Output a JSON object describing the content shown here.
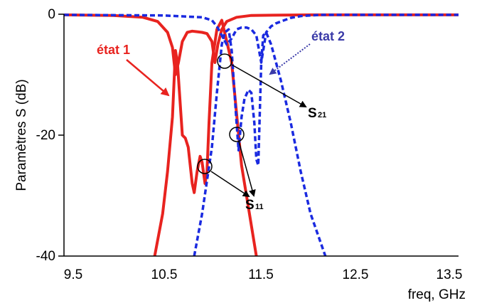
{
  "chart_data": {
    "type": "line",
    "xlabel": "freq, GHz",
    "ylabel": "Paramètres S (dB)",
    "xlim": [
      9.5,
      13.5
    ],
    "ylim": [
      -40,
      0
    ],
    "x_ticks": [
      "9.5",
      "10.5",
      "11.5",
      "12.5",
      "13.5"
    ],
    "y_ticks": [
      "0",
      "-20",
      "-40"
    ],
    "grid": false,
    "colors": {
      "etat1": "#e8231f",
      "etat2": "#1a2ae0",
      "axis": "#000000",
      "arrow2": "#3a3aa8"
    },
    "series": [
      {
        "name": "S21",
        "state": "état 1",
        "style": "solid",
        "x": [
          9.5,
          10.0,
          10.3,
          10.45,
          10.55,
          10.6,
          10.63,
          10.66,
          10.7,
          10.75,
          10.8,
          10.85,
          10.9,
          10.95,
          11.0,
          11.03,
          11.06,
          11.1,
          11.15,
          11.25,
          11.4,
          12.0,
          13.5
        ],
        "y": [
          -0.1,
          -0.2,
          -0.5,
          -1.2,
          -3.0,
          -5.5,
          -10.0,
          -8.0,
          -4.5,
          -3.0,
          -2.8,
          -2.9,
          -3.0,
          -3.2,
          -4.5,
          -8.0,
          -5.0,
          -2.5,
          -1.2,
          -0.5,
          -0.2,
          -0.1,
          -0.1
        ]
      },
      {
        "name": "S11",
        "state": "état 1",
        "style": "solid",
        "x": [
          10.42,
          10.5,
          10.55,
          10.6,
          10.63,
          10.65,
          10.7,
          10.73,
          10.76,
          10.8,
          10.82,
          10.85,
          10.88,
          10.9,
          10.93,
          10.95,
          10.97,
          11.0,
          11.05,
          11.1,
          11.2,
          11.3,
          11.45
        ],
        "y": [
          -40,
          -33,
          -26,
          -17,
          -6,
          -8,
          -20,
          -20.5,
          -22,
          -28,
          -29.5,
          -26,
          -23.5,
          -24.5,
          -28,
          -26,
          -18,
          -8,
          -2.5,
          -1.0,
          -8,
          -25,
          -40
        ]
      },
      {
        "name": "S21",
        "state": "état 2",
        "style": "dashed",
        "x": [
          9.5,
          10.5,
          10.9,
          11.0,
          11.05,
          11.1,
          11.15,
          11.2,
          11.25,
          11.3,
          11.35,
          11.4,
          11.45,
          11.5,
          11.55,
          11.6,
          11.65,
          11.7,
          11.8,
          11.9,
          12.0,
          12.1,
          12.2,
          13.5
        ],
        "y": [
          -0.1,
          -0.2,
          -0.5,
          -1.0,
          -2.0,
          -3.5,
          -5.0,
          -4.0,
          -2.5,
          -2.2,
          -2.2,
          -2.5,
          -3.5,
          -8.0,
          -3.0,
          -2.0,
          -1.5,
          -1.2,
          -0.6,
          -0.3,
          -0.2,
          -0.1,
          -0.1,
          -0.1
        ]
      },
      {
        "name": "S11",
        "state": "état 2",
        "style": "dashed",
        "x": [
          10.82,
          10.9,
          11.0,
          11.05,
          11.1,
          11.13,
          11.17,
          11.2,
          11.25,
          11.27,
          11.3,
          11.33,
          11.37,
          11.4,
          11.43,
          11.45,
          11.47,
          11.5,
          11.52,
          11.55,
          11.6,
          11.7,
          11.8,
          11.9,
          12.0,
          12.15
        ],
        "y": [
          -40,
          -33,
          -22,
          -13,
          -5,
          -3,
          -2.5,
          -6,
          -18,
          -22.5,
          -17,
          -14,
          -12.5,
          -13,
          -18,
          -24,
          -25,
          -8,
          -3.5,
          -3,
          -5,
          -11,
          -18,
          -26,
          -33,
          -40
        ]
      }
    ],
    "annotations": {
      "etat1": "état 1",
      "etat2": "état 2",
      "s21": "S",
      "s21_sub": "21",
      "s11": "S",
      "s11_sub": "11"
    }
  }
}
